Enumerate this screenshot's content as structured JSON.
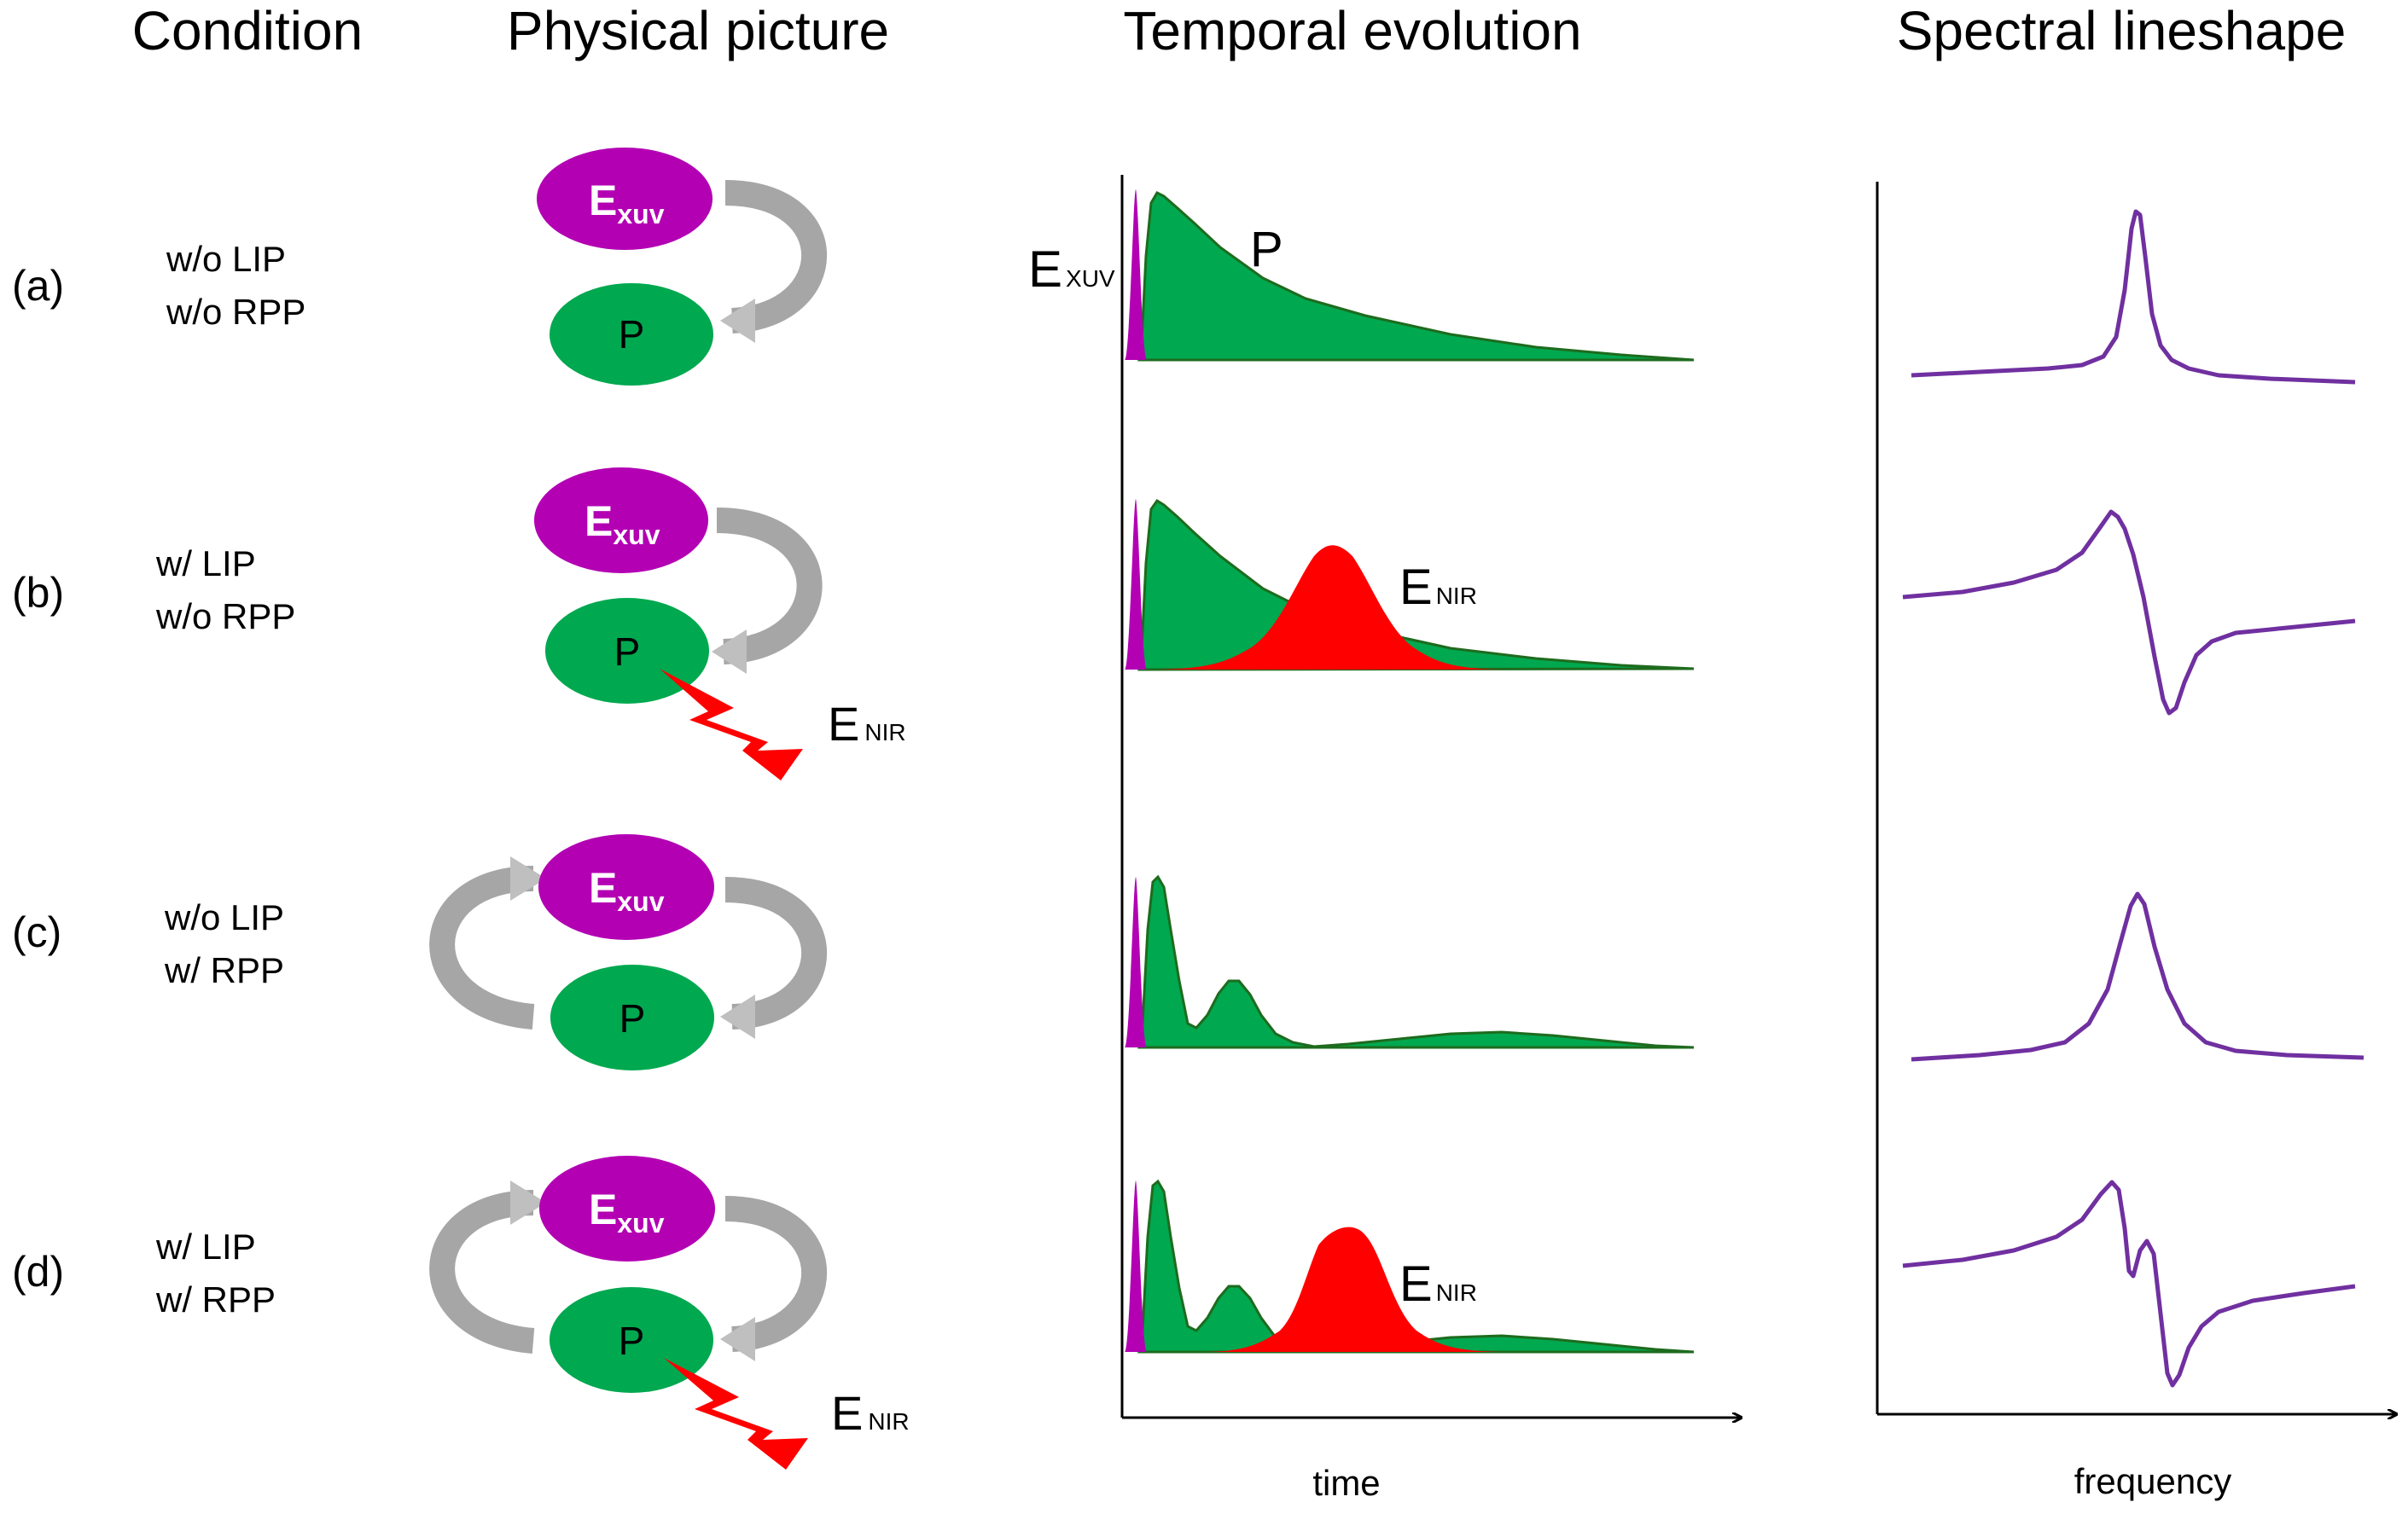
{
  "headers": {
    "condition": "Condition",
    "physical": "Physical picture",
    "temporal": "Temporal evolution",
    "spectral": "Spectral lineshape"
  },
  "rows": [
    {
      "label": "(a)",
      "cond1": "w/o LIP",
      "cond2": "w/o RPP"
    },
    {
      "label": "(b)",
      "cond1": "w/   LIP",
      "cond2": "w/o RPP"
    },
    {
      "label": "(c)",
      "cond1": "w/o LIP",
      "cond2": "w/   RPP"
    },
    {
      "label": "(d)",
      "cond1": "w/   LIP",
      "cond2": "w/   RPP"
    }
  ],
  "symbols": {
    "e": "E",
    "xuv_sub_ellipse": "xuv",
    "xuv_sub_plot": "XUV",
    "nir_sub": "NIR",
    "p": "P"
  },
  "axes": {
    "time": "time",
    "frequency": "frequency"
  },
  "colors": {
    "xuv": "#b300b3",
    "polarization": "#00a84f",
    "polarization_line": "#1e6b1e",
    "nir": "#ff0000",
    "spectrum": "#7030a0",
    "arrow_dark": "#8c8c8c",
    "arrow_light": "#c8c8c8"
  },
  "chart_data": [
    {
      "type": "area",
      "title": "Temporal evolution",
      "xlabel": "time",
      "ylabel": "",
      "panels": [
        {
          "panel": "(a)",
          "series": [
            "E XUV pulse (short, at t≈0)",
            "P: single exponential decay"
          ]
        },
        {
          "panel": "(b)",
          "series": [
            "E XUV pulse",
            "P: exponential decay",
            "E NIR pulse (Gaussian, delayed)"
          ]
        },
        {
          "panel": "(c)",
          "series": [
            "E XUV pulse",
            "P: damped oscillating decay (reshaped by RPP)"
          ]
        },
        {
          "panel": "(d)",
          "series": [
            "E XUV pulse",
            "P: damped oscillating decay",
            "E NIR pulse (Gaussian, delayed)"
          ]
        }
      ]
    },
    {
      "type": "line",
      "title": "Spectral lineshape",
      "xlabel": "frequency",
      "ylabel": "",
      "panels": [
        {
          "panel": "(a)",
          "shape": "narrow symmetric Lorentzian peak"
        },
        {
          "panel": "(b)",
          "shape": "asymmetric dispersive (Fano-like) profile"
        },
        {
          "panel": "(c)",
          "shape": "broadened symmetric peak"
        },
        {
          "panel": "(d)",
          "shape": "asymmetric dispersive profile with inner structure"
        }
      ]
    }
  ]
}
